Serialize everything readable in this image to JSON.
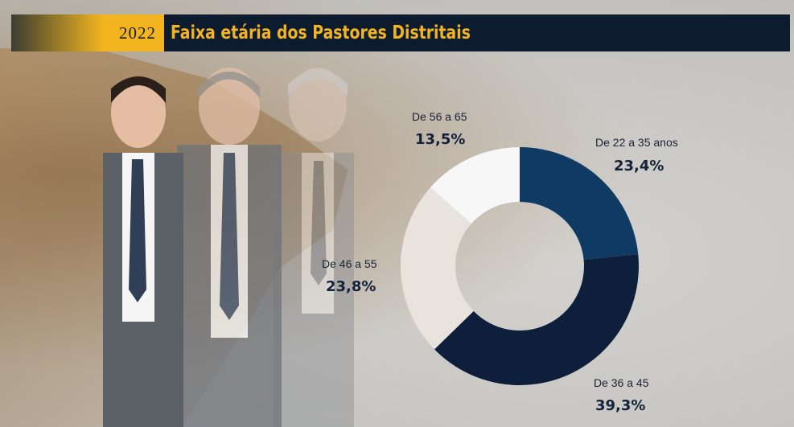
{
  "header": {
    "year": "2022",
    "title": "Faixa etária dos Pastores Distritais"
  },
  "colors": {
    "header_bg": "#0d1b2f",
    "accent": "#f2b51f",
    "slice_22_35": "#0f3a63",
    "slice_36_45": "#0d1f3a",
    "slice_46_55": "#e8e3dc",
    "slice_56_65": "#f7f7f7"
  },
  "chart_data": {
    "type": "pie",
    "variant": "donut",
    "categories": [
      "De 22 a 35 anos",
      "De 36 a 45",
      "De 46 a 55",
      "De 56 a 65"
    ],
    "values": [
      23.4,
      39.3,
      23.8,
      13.5
    ],
    "value_labels": [
      "23,4%",
      "39,3%",
      "23,8%",
      "13,5%"
    ],
    "colors": [
      "#0f3a63",
      "#0d1f3a",
      "#e8e3dc",
      "#f7f7f7"
    ],
    "legend": "none",
    "start": "top, clockwise"
  },
  "labels": [
    {
      "cat": "De 22 a 35 anos",
      "val": "23,4%"
    },
    {
      "cat": "De 36 a 45",
      "val": "39,3%"
    },
    {
      "cat": "De 46 a 55",
      "val": "23,8%"
    },
    {
      "cat": "De 56 a 65",
      "val": "13,5%"
    }
  ]
}
